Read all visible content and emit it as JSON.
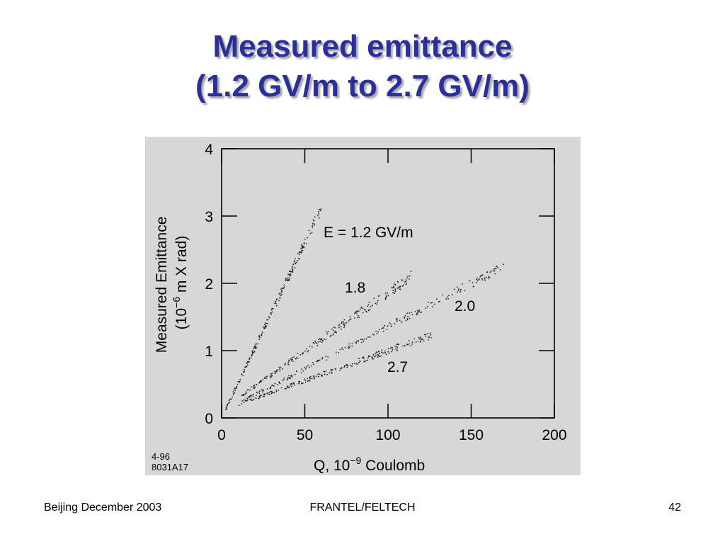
{
  "slide": {
    "title_line1": "Measured emittance",
    "title_line2": "(1.2 GV/m to 2.7 GV/m)"
  },
  "footer": {
    "left": "Beijing December 2003",
    "center": "FRANTEL/FELTECH",
    "right": "42"
  },
  "chart_data": {
    "type": "scatter",
    "title": "",
    "xlabel_prefix": "Q, 10",
    "xlabel_exponent": "−9",
    "xlabel_suffix": " Coulomb",
    "ylabel_line1": "Measured Emittance",
    "ylabel_line2_prefix": "(10",
    "ylabel_line2_exponent": "−6",
    "ylabel_line2_suffix": " m X rad)",
    "xlim": [
      0,
      200
    ],
    "ylim": [
      0,
      4
    ],
    "xticks": [
      0,
      50,
      100,
      150,
      200
    ],
    "yticks": [
      0,
      1,
      2,
      3,
      4
    ],
    "figure_code_line1": "4-96",
    "figure_code_line2": "8031A17",
    "grid": false,
    "colors": {
      "background": "#d7d7d7",
      "marks": "#000000",
      "title": "#2b2f9c"
    },
    "series": [
      {
        "name": "E = 1.2 GV/m",
        "trend": {
          "x": [
            0,
            60
          ],
          "y": [
            0.0,
            3.12
          ]
        },
        "x_range": [
          2,
          60
        ],
        "spread": 0.06
      },
      {
        "name": "1.8",
        "trend": {
          "x": [
            10,
            115
          ],
          "y": [
            0.3,
            2.12
          ]
        },
        "x_range": [
          12,
          115
        ],
        "spread": 0.06
      },
      {
        "name": "2.0",
        "trend": {
          "x": [
            10,
            170
          ],
          "y": [
            0.22,
            2.25
          ]
        },
        "x_range": [
          12,
          170
        ],
        "spread": 0.05
      },
      {
        "name": "2.7",
        "trend": {
          "x": [
            10,
            126
          ],
          "y": [
            0.2,
            1.23
          ]
        },
        "x_range": [
          10,
          126
        ],
        "spread": 0.04
      }
    ]
  }
}
